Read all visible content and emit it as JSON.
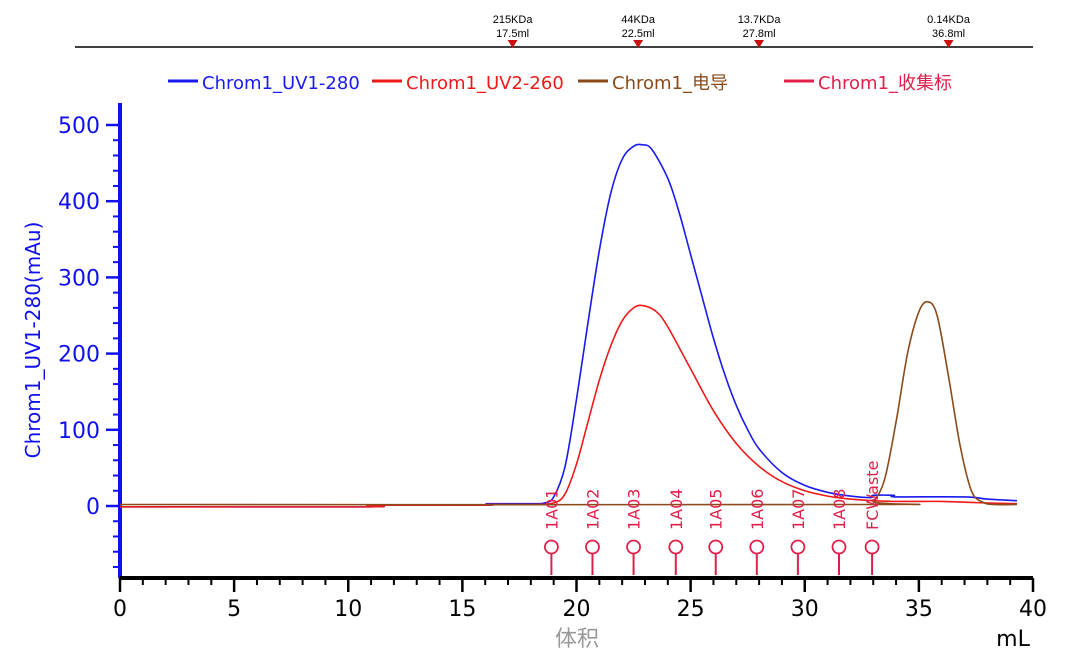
{
  "chart_data": {
    "type": "line",
    "xlabel": "体积",
    "xunit": "mL",
    "ylabel": "Chrom1_UV1-280(mAu)",
    "xlim": [
      0,
      40
    ],
    "ylim": [
      -90,
      520
    ],
    "x_ticks": [
      0,
      5,
      10,
      15,
      20,
      25,
      30,
      35,
      40
    ],
    "y_ticks": [
      0,
      100,
      200,
      300,
      400,
      500
    ],
    "series": [
      {
        "name": "Chrom1_UV1-280",
        "color": "#1a1aee",
        "x": [
          0,
          10.9,
          11.0,
          16.0,
          16.1,
          18.0,
          18.6,
          19.0,
          19.5,
          20.0,
          20.5,
          21.0,
          21.5,
          22.0,
          22.5,
          22.9,
          23.3,
          24.0,
          24.5,
          25.0,
          25.5,
          26.0,
          26.5,
          27.0,
          27.5,
          28.0,
          29.0,
          30.0,
          31.0,
          32.0,
          32.9,
          33.0,
          33.9,
          34.0,
          37.0,
          38.0,
          39.3
        ],
        "y": [
          -1,
          -1,
          1,
          1,
          3,
          3,
          4,
          12,
          52,
          140,
          240,
          335,
          410,
          455,
          472,
          474,
          468,
          430,
          385,
          330,
          275,
          220,
          172,
          132,
          100,
          75,
          44,
          27,
          18,
          13,
          11,
          14,
          14,
          12,
          12,
          9,
          7
        ]
      },
      {
        "name": "Chrom1_UV2-260",
        "color": "#ee1a1a",
        "x": [
          0,
          10.9,
          11.0,
          16.0,
          16.1,
          18.0,
          19.0,
          19.5,
          20.0,
          20.5,
          21.0,
          21.5,
          22.0,
          22.5,
          22.9,
          23.5,
          24.0,
          25.0,
          26.0,
          27.0,
          28.0,
          29.0,
          30.0,
          31.0,
          32.0,
          33.0,
          34.0,
          36.0,
          37.0,
          38.0,
          39.3
        ],
        "y": [
          -1,
          -1,
          1,
          1,
          2,
          2,
          4,
          16,
          55,
          110,
          165,
          210,
          243,
          260,
          263,
          255,
          235,
          180,
          125,
          82,
          52,
          32,
          20,
          13,
          9,
          7,
          6,
          6,
          5,
          4,
          3
        ]
      },
      {
        "name": "Chrom1_电导",
        "color": "#8b4a1a",
        "x": [
          0,
          32.5,
          33.0,
          33.5,
          34.0,
          34.5,
          35.0,
          35.4,
          35.8,
          36.3,
          36.8,
          37.3,
          37.8,
          38.3,
          39.3
        ],
        "y": [
          2,
          2,
          6,
          35,
          110,
          200,
          255,
          268,
          250,
          170,
          80,
          20,
          5,
          2,
          2
        ]
      }
    ],
    "fraction_marker_series": {
      "name": "Chrom1_收集标",
      "color": "#e0204a",
      "labels": [
        "1A01",
        "1A02",
        "1A03",
        "1A04",
        "1A05",
        "1A06",
        "1A07",
        "1A08",
        "FCWaste"
      ],
      "x": [
        18.9,
        20.7,
        22.5,
        24.35,
        26.1,
        27.9,
        29.7,
        31.5,
        32.95
      ]
    },
    "top_markers": [
      {
        "line1": "215KDa",
        "line2": "17.5ml",
        "x": 17.2
      },
      {
        "line1": "44KDa",
        "line2": "22.5ml",
        "x": 22.7
      },
      {
        "line1": "13.7KDa",
        "line2": "27.8ml",
        "x": 28.0
      },
      {
        "line1": "0.14KDa",
        "line2": "36.8ml",
        "x": 36.3
      }
    ],
    "legend": [
      "Chrom1_UV1-280",
      "Chrom1_UV2-260",
      "Chrom1_电导",
      "Chrom1_收集标"
    ]
  }
}
